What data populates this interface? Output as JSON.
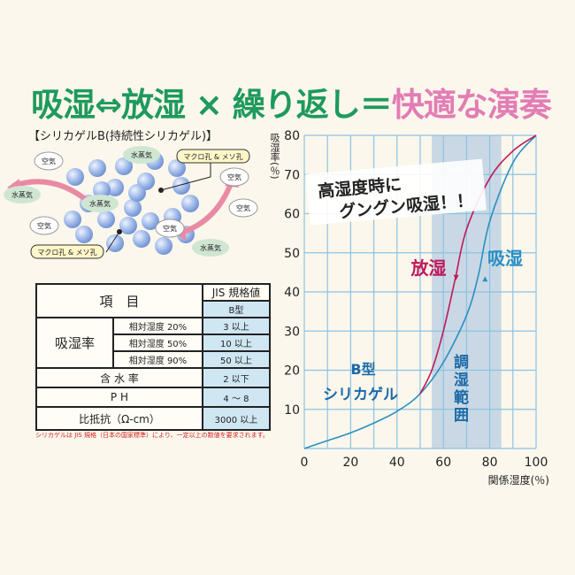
{
  "title": {
    "part1": "吸湿⇔放湿",
    "part2": " × ",
    "part3": "繰り返し＝",
    "part4": "快適な演奏"
  },
  "subtitle": "【シリカゲルB(持続性シリカゲル)】",
  "diagram": {
    "labels": {
      "air": "空気",
      "vapor": "水蒸気",
      "pores": "マクロ孔 & メソ孔"
    }
  },
  "table": {
    "header_item": "項　目",
    "header_jis": "JIS 規格値",
    "header_type": "B型",
    "absorption_label": "吸湿率",
    "rows": [
      {
        "label": "相対湿度 20%",
        "value": "3 以上"
      },
      {
        "label": "相対湿度 50%",
        "value": "10 以上"
      },
      {
        "label": "相対湿度 90%",
        "value": "50 以上"
      }
    ],
    "water": {
      "label": "含 水 率",
      "value": "2 以下"
    },
    "ph": {
      "label": "P H",
      "value": "4 ～ 8"
    },
    "resist": {
      "label": "比抵抗（Ω-cm）",
      "value": "3000 以上"
    },
    "footnote": "シリカゲルは JIS 規格（日本の国家標準）により、一定以上の数値を要求されます。"
  },
  "chart_data": {
    "type": "line",
    "xlabel": "関係湿度(％)",
    "ylabel": "吸湿率(％)",
    "xlim": [
      0,
      100
    ],
    "ylim": [
      0,
      80
    ],
    "xticks": [
      0,
      20,
      40,
      60,
      80,
      100
    ],
    "yticks": [
      10,
      20,
      30,
      40,
      50,
      60,
      70,
      80
    ],
    "grid": true,
    "band": {
      "x": [
        55,
        85
      ],
      "label": "調湿範囲"
    },
    "annotation": [
      "高湿度時に",
      "グングン吸湿！！"
    ],
    "type_label": [
      "B型",
      "シリカゲル"
    ],
    "series": [
      {
        "name": "吸湿",
        "color": "#2a8fc4",
        "x": [
          0,
          10,
          20,
          30,
          40,
          50,
          60,
          70,
          75,
          80,
          90,
          100
        ],
        "y": [
          0,
          2,
          4,
          6.5,
          9.5,
          14,
          22,
          34,
          44,
          58,
          73,
          80
        ]
      },
      {
        "name": "放湿",
        "color": "#c0185a",
        "x": [
          50,
          55,
          60,
          65,
          70,
          80,
          90,
          100
        ],
        "y": [
          14,
          20,
          30,
          43,
          56,
          69,
          76,
          80
        ]
      }
    ]
  }
}
